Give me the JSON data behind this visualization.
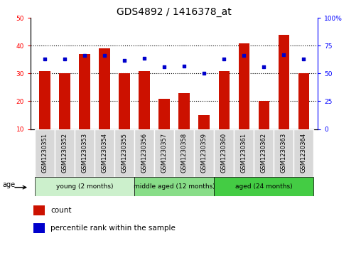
{
  "title": "GDS4892 / 1416378_at",
  "samples": [
    "GSM1230351",
    "GSM1230352",
    "GSM1230353",
    "GSM1230354",
    "GSM1230355",
    "GSM1230356",
    "GSM1230357",
    "GSM1230358",
    "GSM1230359",
    "GSM1230360",
    "GSM1230361",
    "GSM1230362",
    "GSM1230363",
    "GSM1230364"
  ],
  "counts": [
    31,
    30,
    37,
    39,
    30,
    31,
    21,
    23,
    15,
    31,
    41,
    20,
    44,
    30
  ],
  "percentile_ranks": [
    63,
    63,
    66,
    66,
    62,
    64,
    56,
    57,
    50,
    63,
    66,
    56,
    67,
    63
  ],
  "groups": [
    {
      "label": "young (2 months)",
      "start": 0,
      "end": 5,
      "color": "#ccf0cc"
    },
    {
      "label": "middle aged (12 months)",
      "start": 5,
      "end": 9,
      "color": "#88dd88"
    },
    {
      "label": "aged (24 months)",
      "start": 9,
      "end": 14,
      "color": "#44cc44"
    }
  ],
  "bar_color": "#CC1100",
  "dot_color": "#0000CC",
  "ylim_left": [
    10,
    50
  ],
  "ylim_right": [
    0,
    100
  ],
  "yticks_left": [
    10,
    20,
    30,
    40,
    50
  ],
  "yticks_right": [
    0,
    25,
    50,
    75,
    100
  ],
  "ytick_labels_right": [
    "0",
    "25",
    "50",
    "75",
    "100%"
  ],
  "grid_values": [
    20,
    30,
    40
  ],
  "bar_width": 0.55,
  "title_fontsize": 10,
  "tick_fontsize": 6.5,
  "sample_fontsize": 6,
  "label_fontsize": 8,
  "age_label": "age",
  "legend_count_label": "count",
  "legend_percentile_label": "percentile rank within the sample"
}
